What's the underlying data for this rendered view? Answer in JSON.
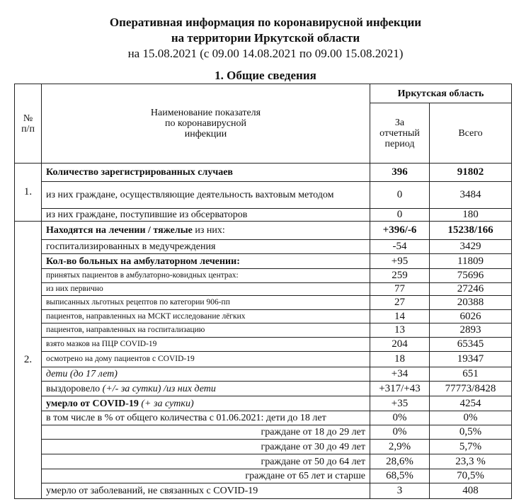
{
  "header": {
    "line1": "Оперативная информация по коронавирусной инфекции",
    "line2": "на территории Иркутской области",
    "line3": "на 15.08.2021 (с 09.00 14.08.2021 по 09.00 15.08.2021)",
    "section": "1. Общие сведения"
  },
  "table": {
    "col_num": "№ п/п",
    "col_name": "Наименование показателя по коронавирусной инфекции",
    "col_region": "Иркутская область",
    "col_period": "За отчетный период",
    "col_total": "Всего",
    "groups": [
      {
        "num": "1.",
        "rows": [
          {
            "label": "Количество зарегистрированных случаев",
            "period": "396",
            "total": "91802",
            "style": "bold"
          },
          {
            "label": "из них граждане, осуществляющие деятельность вахтовым методом",
            "period": "0",
            "total": "3484",
            "style": "justify"
          },
          {
            "label": "из них граждане, поступившие из обсерваторов",
            "period": "0",
            "total": "180",
            "style": "normal"
          }
        ]
      },
      {
        "num": "2.",
        "rows": [
          {
            "label": "Находятся на лечении / тяжелые",
            "label_suffix": " из них:",
            "period": "+396/-6",
            "total": "15238/166",
            "style": "bold-partial"
          },
          {
            "label": "госпитализированных в медучреждения",
            "period": "-54",
            "total": "3429",
            "style": "normal"
          },
          {
            "label": "Кол-во больных на амбулаторном лечении:",
            "period": "+95",
            "total": "11809",
            "style": "bold-label"
          },
          {
            "label": "принятых пациентов в амбулаторно-ковидных центрах:",
            "period": "259",
            "total": "75696",
            "style": "small"
          },
          {
            "label": "из них первично",
            "period": "77",
            "total": "27246",
            "style": "small"
          },
          {
            "label": "выписанных льготных рецептов по категории 906-пп",
            "period": "27",
            "total": "20388",
            "style": "small"
          },
          {
            "label": "пациентов, направленных на МСКТ исследование лёгких",
            "period": "14",
            "total": "6026",
            "style": "small"
          },
          {
            "label": "пациентов, направленных на госпитализацию",
            "period": "13",
            "total": "2893",
            "style": "small"
          },
          {
            "label": "взято мазков на ПЦР COVID-19",
            "period": "204",
            "total": "65345",
            "style": "small"
          },
          {
            "label": "осмотрено на дому пациентов с COVID-19",
            "period": "18",
            "total": "19347",
            "style": "small"
          },
          {
            "label": "дети ",
            "label_suffix": "(до 17 лет)",
            "period": "+34",
            "total": "651",
            "style": "italic"
          },
          {
            "label": "выздоровело ",
            "label_suffix": "(+/- за сутки) /из них дети",
            "period": "+317/+43",
            "total": "77773/8428",
            "style": "partial-italic"
          },
          {
            "label": "умерло от COVID-19 ",
            "label_suffix": "(+ за сутки)",
            "period": "+35",
            "total": "4254",
            "style": "bold-italic"
          },
          {
            "label": "в том числе в % от общего количества с 01.06.2021: дети до 18 лет",
            "period": "0%",
            "total": "0%",
            "style": "normal"
          },
          {
            "label": "граждане от 18 до 29 лет",
            "period": "0%",
            "total": "0,5%",
            "style": "right"
          },
          {
            "label": "граждане от 30 до 49 лет",
            "period": "2,9%",
            "total": "5,7%",
            "style": "right"
          },
          {
            "label": "граждане от 50 до 64 лет",
            "period": "28,6%",
            "total": "23,3 %",
            "style": "right"
          },
          {
            "label": "граждане от 65 лет и старше",
            "period": "68,5%",
            "total": "70,5%",
            "style": "right"
          },
          {
            "label": "умерло от заболеваний, не связанных с COVID-19",
            "period": "3",
            "total": "408",
            "style": "normal"
          }
        ]
      }
    ]
  }
}
